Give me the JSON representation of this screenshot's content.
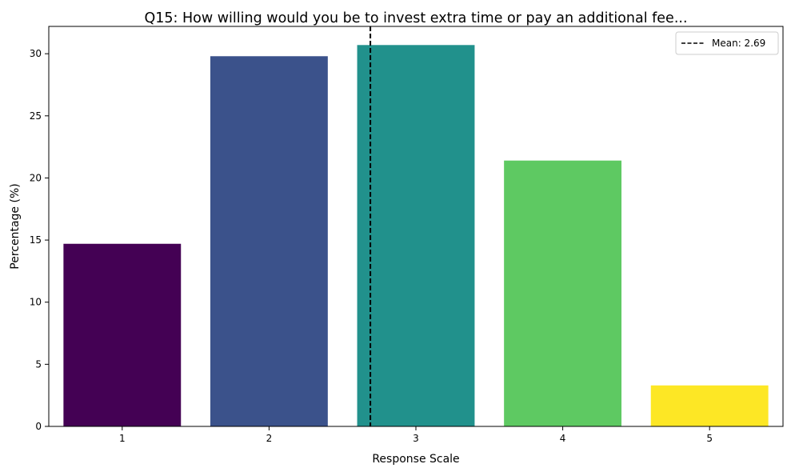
{
  "chart_data": {
    "type": "bar",
    "title": "Q15: How willing would you be to invest extra time or pay an additional fee...",
    "xlabel": "Response Scale",
    "ylabel": "Percentage (%)",
    "categories": [
      "1",
      "2",
      "3",
      "4",
      "5"
    ],
    "values": [
      14.7,
      29.8,
      30.7,
      21.4,
      3.3
    ],
    "bar_colors": [
      "#440154",
      "#3b528b",
      "#21918c",
      "#5ec962",
      "#fde725"
    ],
    "ylim": [
      0,
      32.2
    ],
    "yticks": [
      0,
      5,
      10,
      15,
      20,
      25,
      30
    ],
    "mean": 2.69,
    "mean_label": "Mean: 2.69",
    "mean_line_color": "#000000",
    "legend_position": "top-right",
    "grid": false
  }
}
